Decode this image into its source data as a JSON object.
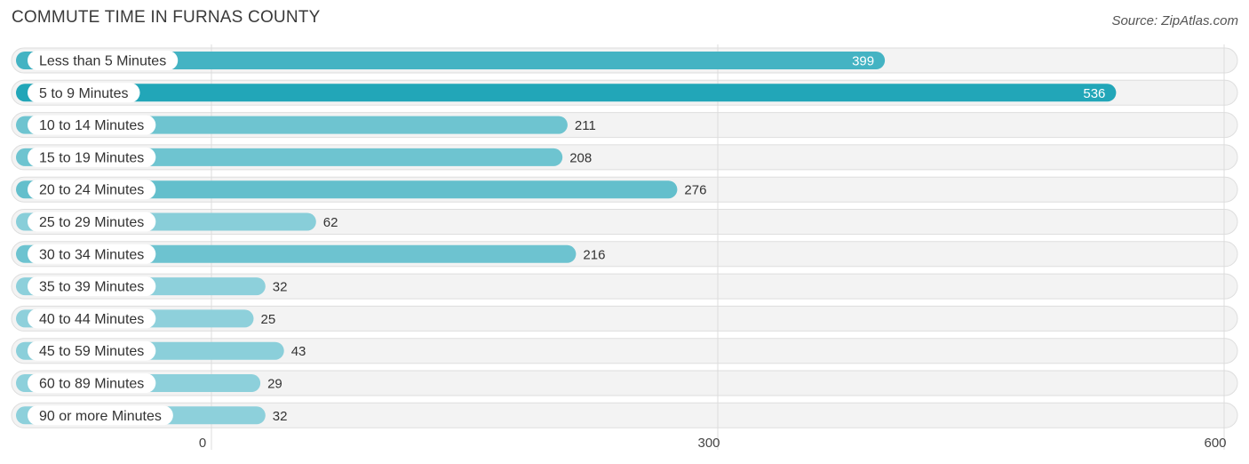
{
  "chart_data": {
    "type": "bar",
    "orientation": "horizontal",
    "title": "Commute Time in Furnas County",
    "source": "Source: ZipAtlas.com",
    "categories": [
      "Less than 5 Minutes",
      "5 to 9 Minutes",
      "10 to 14 Minutes",
      "15 to 19 Minutes",
      "20 to 24 Minutes",
      "25 to 29 Minutes",
      "30 to 34 Minutes",
      "35 to 39 Minutes",
      "40 to 44 Minutes",
      "45 to 59 Minutes",
      "60 to 89 Minutes",
      "90 or more Minutes"
    ],
    "values": [
      399,
      536,
      211,
      208,
      276,
      62,
      216,
      32,
      25,
      43,
      29,
      32
    ],
    "xlim": [
      0,
      600
    ],
    "xticks": [
      0,
      300,
      600
    ],
    "xlabel": "",
    "ylabel": "",
    "grid": true,
    "colors": {
      "bar_max": "#22a6b8",
      "bar_mid": "#62bfcc",
      "bar_min": "#8ed0db",
      "track": "#f3f3f3",
      "track_border": "#dedede",
      "grid": "#dcdcdc"
    }
  }
}
